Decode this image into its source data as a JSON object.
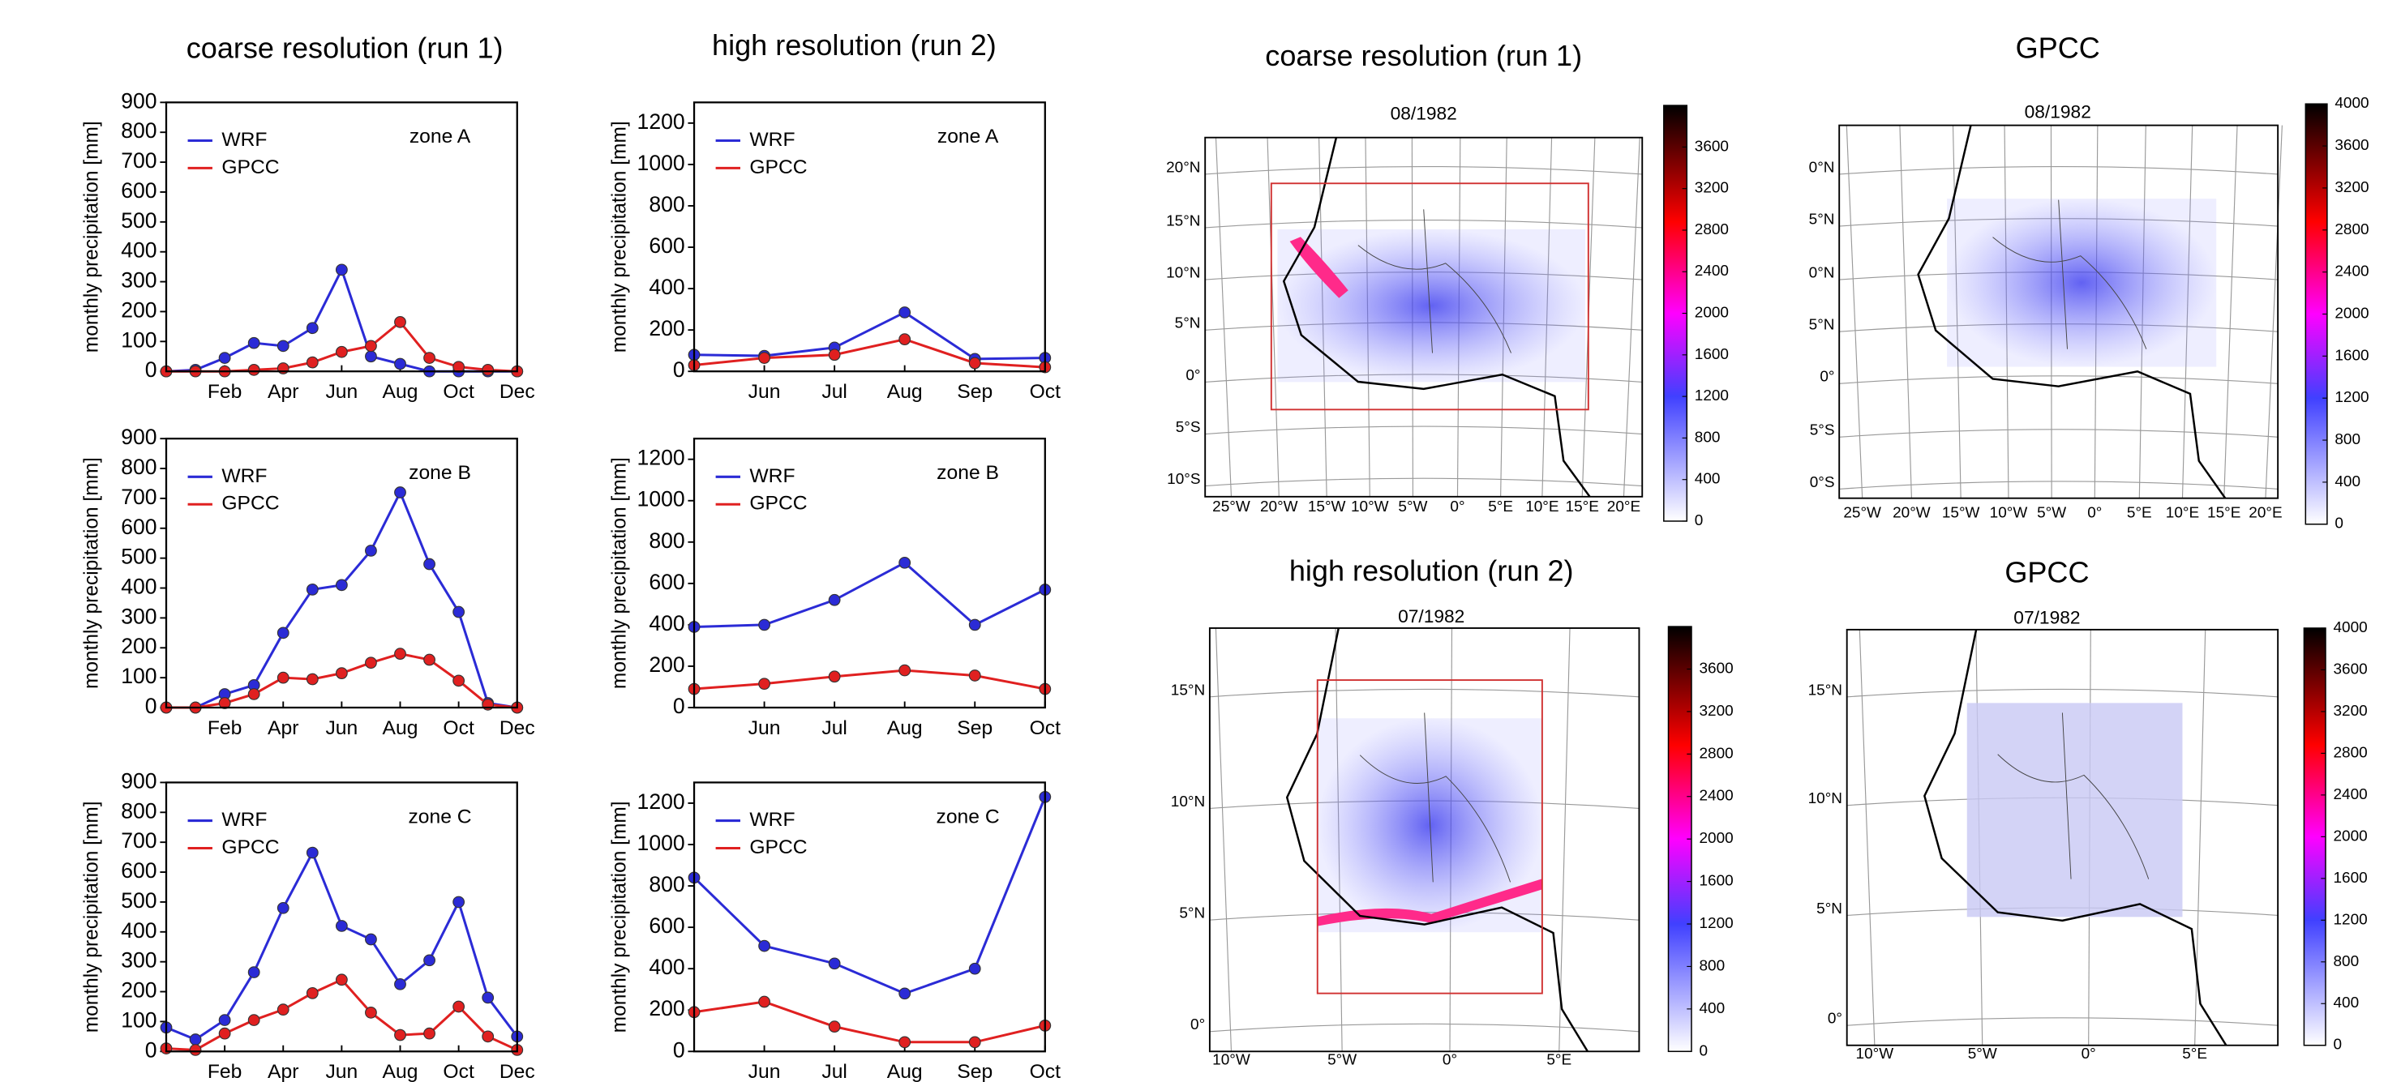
{
  "chart_data": [
    {
      "type": "line",
      "title": "coarse resolution (run 1)",
      "annotation": "zone A",
      "y_label": "monthly precipitation [mm]",
      "categories": [
        null,
        null,
        "Feb",
        null,
        "Apr",
        null,
        "Jun",
        null,
        "Aug",
        null,
        "Oct",
        null,
        "Dec"
      ],
      "series": [
        {
          "name": "WRF",
          "color": "#2b2bd6",
          "values": [
            0,
            5,
            45,
            95,
            85,
            145,
            340,
            50,
            25,
            0,
            0,
            0,
            0
          ]
        },
        {
          "name": "GPCC",
          "color": "#e02020",
          "values": [
            0,
            0,
            0,
            5,
            10,
            30,
            65,
            85,
            165,
            45,
            15,
            5,
            0
          ]
        }
      ],
      "ylim": [
        0,
        900
      ],
      "yticks": [
        0,
        100,
        200,
        300,
        400,
        500,
        600,
        700,
        800,
        900
      ]
    },
    {
      "type": "line",
      "title": "high resolution (run 2)",
      "annotation": "zone A",
      "y_label": "monthly precipitation [mm]",
      "categories": [
        null,
        "Jun",
        "Jul",
        "Aug",
        "Sep",
        "Oct"
      ],
      "series": [
        {
          "name": "WRF",
          "color": "#2b2bd6",
          "values": [
            80,
            75,
            115,
            285,
            60,
            65
          ]
        },
        {
          "name": "GPCC",
          "color": "#e02020",
          "values": [
            30,
            65,
            80,
            155,
            40,
            20
          ]
        }
      ],
      "ylim": [
        0,
        1300
      ],
      "yticks": [
        0,
        200,
        400,
        600,
        800,
        1000,
        1200
      ]
    },
    {
      "type": "line",
      "annotation": "zone B",
      "y_label": "monthly precipitation [mm]",
      "categories": [
        null,
        null,
        "Feb",
        null,
        "Apr",
        null,
        "Jun",
        null,
        "Aug",
        null,
        "Oct",
        null,
        "Dec"
      ],
      "series": [
        {
          "name": "WRF",
          "color": "#2b2bd6",
          "values": [
            0,
            0,
            45,
            75,
            250,
            395,
            410,
            525,
            720,
            480,
            320,
            15,
            0
          ]
        },
        {
          "name": "GPCC",
          "color": "#e02020",
          "values": [
            0,
            0,
            15,
            45,
            100,
            95,
            115,
            150,
            180,
            160,
            90,
            10,
            0
          ]
        }
      ],
      "ylim": [
        0,
        900
      ],
      "yticks": [
        0,
        100,
        200,
        300,
        400,
        500,
        600,
        700,
        800,
        900
      ]
    },
    {
      "type": "line",
      "annotation": "zone B",
      "y_label": "monthly precipitation [mm]",
      "categories": [
        null,
        "Jun",
        "Jul",
        "Aug",
        "Sep",
        "Oct"
      ],
      "series": [
        {
          "name": "WRF",
          "color": "#2b2bd6",
          "values": [
            390,
            400,
            520,
            700,
            400,
            570
          ]
        },
        {
          "name": "GPCC",
          "color": "#e02020",
          "values": [
            90,
            115,
            150,
            180,
            155,
            90
          ]
        }
      ],
      "ylim": [
        0,
        1300
      ],
      "yticks": [
        0,
        200,
        400,
        600,
        800,
        1000,
        1200
      ]
    },
    {
      "type": "line",
      "annotation": "zone C",
      "y_label": "monthly precipitation [mm]",
      "categories": [
        null,
        null,
        "Feb",
        null,
        "Apr",
        null,
        "Jun",
        null,
        "Aug",
        null,
        "Oct",
        null,
        "Dec"
      ],
      "series": [
        {
          "name": "WRF",
          "color": "#2b2bd6",
          "values": [
            80,
            40,
            105,
            265,
            480,
            665,
            420,
            375,
            225,
            305,
            500,
            180,
            50
          ]
        },
        {
          "name": "GPCC",
          "color": "#e02020",
          "values": [
            10,
            5,
            60,
            105,
            140,
            195,
            240,
            130,
            55,
            60,
            150,
            50,
            5
          ]
        }
      ],
      "ylim": [
        0,
        900
      ],
      "yticks": [
        0,
        100,
        200,
        300,
        400,
        500,
        600,
        700,
        800,
        900
      ]
    },
    {
      "type": "line",
      "annotation": "zone C",
      "y_label": "monthly precipitation [mm]",
      "categories": [
        null,
        "Jun",
        "Jul",
        "Aug",
        "Sep",
        "Oct"
      ],
      "series": [
        {
          "name": "WRF",
          "color": "#2b2bd6",
          "values": [
            840,
            510,
            425,
            280,
            400,
            1230
          ]
        },
        {
          "name": "GPCC",
          "color": "#e02020",
          "values": [
            190,
            240,
            120,
            45,
            45,
            125
          ]
        }
      ],
      "ylim": [
        0,
        1300
      ],
      "yticks": [
        0,
        200,
        400,
        600,
        800,
        1000,
        1200
      ]
    }
  ],
  "maps": [
    {
      "title": "coarse resolution (run 1)",
      "date": "08/1982",
      "lat_labels": [
        "20°N",
        "15°N",
        "10°N",
        "5°N",
        "0°",
        "5°S",
        "10°S"
      ],
      "lon_labels": [
        "25°W",
        "20°W",
        "15°W",
        "10°W",
        "5°W",
        "0°",
        "5°E",
        "10°E",
        "15°E",
        "20°E"
      ],
      "colorbar": {
        "lim": [
          0,
          4000
        ],
        "ticks": [
          0,
          400,
          800,
          1200,
          1600,
          2000,
          2400,
          2800,
          3200,
          3600
        ]
      }
    },
    {
      "title": "GPCC",
      "date": "08/1982",
      "lat_labels": [
        "0°N",
        "5°N",
        "0°N",
        "5°N",
        "0°",
        "5°S",
        "0°S"
      ],
      "lon_labels": [
        "25°W",
        "20°W",
        "15°W",
        "10°W",
        "5°W",
        "0°",
        "5°E",
        "10°E",
        "15°E",
        "20°E"
      ],
      "colorbar": {
        "lim": [
          0,
          4000
        ],
        "ticks": [
          0,
          400,
          800,
          1200,
          1600,
          2000,
          2400,
          2800,
          3200,
          3600,
          4000
        ]
      }
    },
    {
      "title": "high resolution (run 2)",
      "date": "07/1982",
      "lat_labels": [
        "15°N",
        "10°N",
        "5°N",
        "0°"
      ],
      "lon_labels": [
        "10°W",
        "5°W",
        "0°",
        "5°E"
      ],
      "colorbar": {
        "lim": [
          0,
          4000
        ],
        "ticks": [
          0,
          400,
          800,
          1200,
          1600,
          2000,
          2400,
          2800,
          3200,
          3600
        ]
      }
    },
    {
      "title": "GPCC",
      "date": "07/1982",
      "lat_labels": [
        "15°N",
        "10°N",
        "5°N",
        "0°"
      ],
      "lon_labels": [
        "10°W",
        "5°W",
        "0°",
        "5°E"
      ],
      "colorbar": {
        "lim": [
          0,
          4000
        ],
        "ticks": [
          0,
          400,
          800,
          1200,
          1600,
          2000,
          2400,
          2800,
          3200,
          3600,
          4000
        ]
      }
    }
  ]
}
